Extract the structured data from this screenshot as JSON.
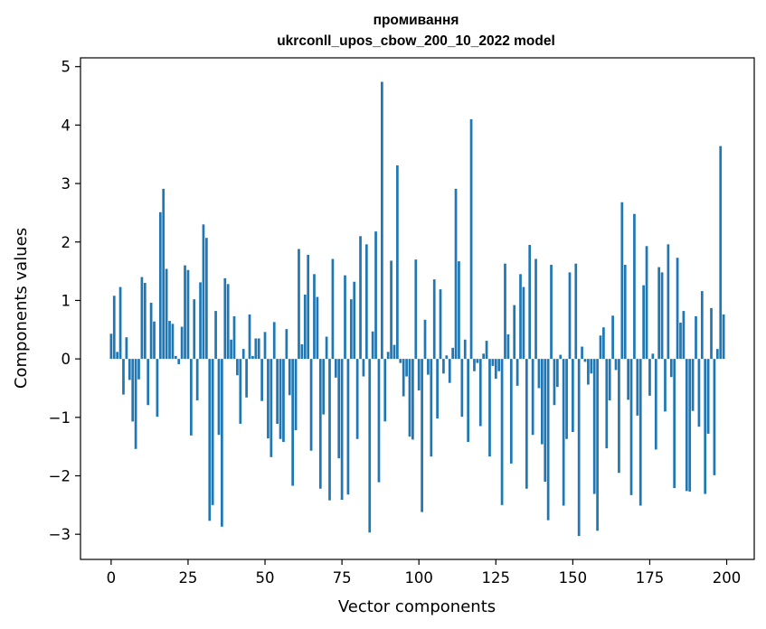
{
  "chart_data": {
    "type": "bar",
    "title": "промивання",
    "subtitle": "ukrconll_upos_cbow_200_10_2022 model",
    "xlabel": "Vector components",
    "ylabel": "Components values",
    "xlim": [
      -9.95,
      208.95
    ],
    "ylim": [
      -3.43,
      5.15
    ],
    "xticks": [
      0,
      25,
      50,
      75,
      100,
      125,
      150,
      175,
      200
    ],
    "yticks": [
      -3,
      -2,
      -1,
      0,
      1,
      2,
      3,
      4,
      5
    ],
    "xtick_labels": [
      "0",
      "25",
      "50",
      "75",
      "100",
      "125",
      "150",
      "175",
      "200"
    ],
    "ytick_labels": [
      "−3",
      "−2",
      "−1",
      "0",
      "1",
      "2",
      "3",
      "4",
      "5"
    ],
    "grid": false,
    "legend": "none",
    "bar_color": "#1f77b4",
    "x": [
      0,
      1,
      2,
      3,
      4,
      5,
      6,
      7,
      8,
      9,
      10,
      11,
      12,
      13,
      14,
      15,
      16,
      17,
      18,
      19,
      20,
      21,
      22,
      23,
      24,
      25,
      26,
      27,
      28,
      29,
      30,
      31,
      32,
      33,
      34,
      35,
      36,
      37,
      38,
      39,
      40,
      41,
      42,
      43,
      44,
      45,
      46,
      47,
      48,
      49,
      50,
      51,
      52,
      53,
      54,
      55,
      56,
      57,
      58,
      59,
      60,
      61,
      62,
      63,
      64,
      65,
      66,
      67,
      68,
      69,
      70,
      71,
      72,
      73,
      74,
      75,
      76,
      77,
      78,
      79,
      80,
      81,
      82,
      83,
      84,
      85,
      86,
      87,
      88,
      89,
      90,
      91,
      92,
      93,
      94,
      95,
      96,
      97,
      98,
      99,
      100,
      101,
      102,
      103,
      104,
      105,
      106,
      107,
      108,
      109,
      110,
      111,
      112,
      113,
      114,
      115,
      116,
      117,
      118,
      119,
      120,
      121,
      122,
      123,
      124,
      125,
      126,
      127,
      128,
      129,
      130,
      131,
      132,
      133,
      134,
      135,
      136,
      137,
      138,
      139,
      140,
      141,
      142,
      143,
      144,
      145,
      146,
      147,
      148,
      149,
      150,
      151,
      152,
      153,
      154,
      155,
      156,
      157,
      158,
      159,
      160,
      161,
      162,
      163,
      164,
      165,
      166,
      167,
      168,
      169,
      170,
      171,
      172,
      173,
      174,
      175,
      176,
      177,
      178,
      179,
      180,
      181,
      182,
      183,
      184,
      185,
      186,
      187,
      188,
      189,
      190,
      191,
      192,
      193,
      194,
      195,
      196,
      197,
      198,
      199
    ],
    "values": [
      0.43,
      1.08,
      0.12,
      1.23,
      -0.61,
      0.37,
      -0.36,
      -1.07,
      -1.54,
      -0.35,
      1.4,
      1.3,
      -0.79,
      0.96,
      0.64,
      -0.99,
      2.51,
      2.91,
      1.54,
      0.65,
      0.6,
      0.05,
      -0.09,
      0.55,
      1.6,
      1.52,
      -1.31,
      1.02,
      -0.71,
      1.31,
      2.3,
      2.07,
      -2.77,
      -2.5,
      0.82,
      -1.3,
      -2.87,
      1.38,
      1.28,
      0.33,
      0.73,
      -0.28,
      -1.11,
      0.17,
      -0.66,
      0.76,
      0.05,
      0.35,
      0.35,
      -0.72,
      0.46,
      -1.36,
      -1.68,
      0.63,
      -1.11,
      -1.37,
      -1.42,
      0.51,
      -0.62,
      -2.17,
      -1.22,
      1.88,
      0.25,
      1.1,
      1.78,
      -1.57,
      1.45,
      1.06,
      -2.22,
      -0.95,
      0.38,
      -2.42,
      1.71,
      -0.32,
      -1.7,
      -2.41,
      1.43,
      -2.32,
      1.02,
      1.32,
      -1.37,
      2.1,
      -0.3,
      1.96,
      -2.97,
      0.47,
      2.18,
      -2.11,
      4.74,
      -1.07,
      0.12,
      1.68,
      0.24,
      3.31,
      -0.07,
      -0.64,
      -0.3,
      -1.33,
      -1.38,
      1.7,
      -0.54,
      -2.62,
      0.67,
      -0.27,
      -1.67,
      1.36,
      -1.02,
      1.19,
      -0.25,
      0.06,
      -0.41,
      0.19,
      2.91,
      1.67,
      -0.99,
      0.33,
      -1.42,
      4.1,
      -0.21,
      -0.07,
      -1.15,
      0.09,
      0.31,
      -1.67,
      -0.12,
      -0.34,
      -0.21,
      -2.5,
      1.63,
      0.42,
      -1.79,
      0.92,
      -0.46,
      1.45,
      1.23,
      -2.22,
      1.95,
      -1.3,
      1.71,
      -0.5,
      -1.46,
      -2.1,
      -2.76,
      1.61,
      -0.79,
      -0.48,
      0.07,
      -2.51,
      -1.37,
      1.48,
      -1.25,
      1.63,
      -3.03,
      0.21,
      -0.05,
      -0.44,
      -0.25,
      -2.31,
      -2.94,
      0.4,
      0.54,
      -1.53,
      -0.71,
      0.74,
      -0.19,
      -1.95,
      2.68,
      1.61,
      -0.7,
      -2.33,
      2.48,
      -0.97,
      -2.51,
      1.26,
      1.93,
      -0.63,
      0.09,
      -1.55,
      1.57,
      1.48,
      -0.9,
      1.96,
      -0.31,
      -2.21,
      1.73,
      0.62,
      0.82,
      -2.26,
      -2.27,
      -0.89,
      0.73,
      -1.16,
      1.16,
      -2.31,
      -1.28,
      0.87,
      -1.99,
      0.17,
      3.64,
      0.76
    ]
  }
}
